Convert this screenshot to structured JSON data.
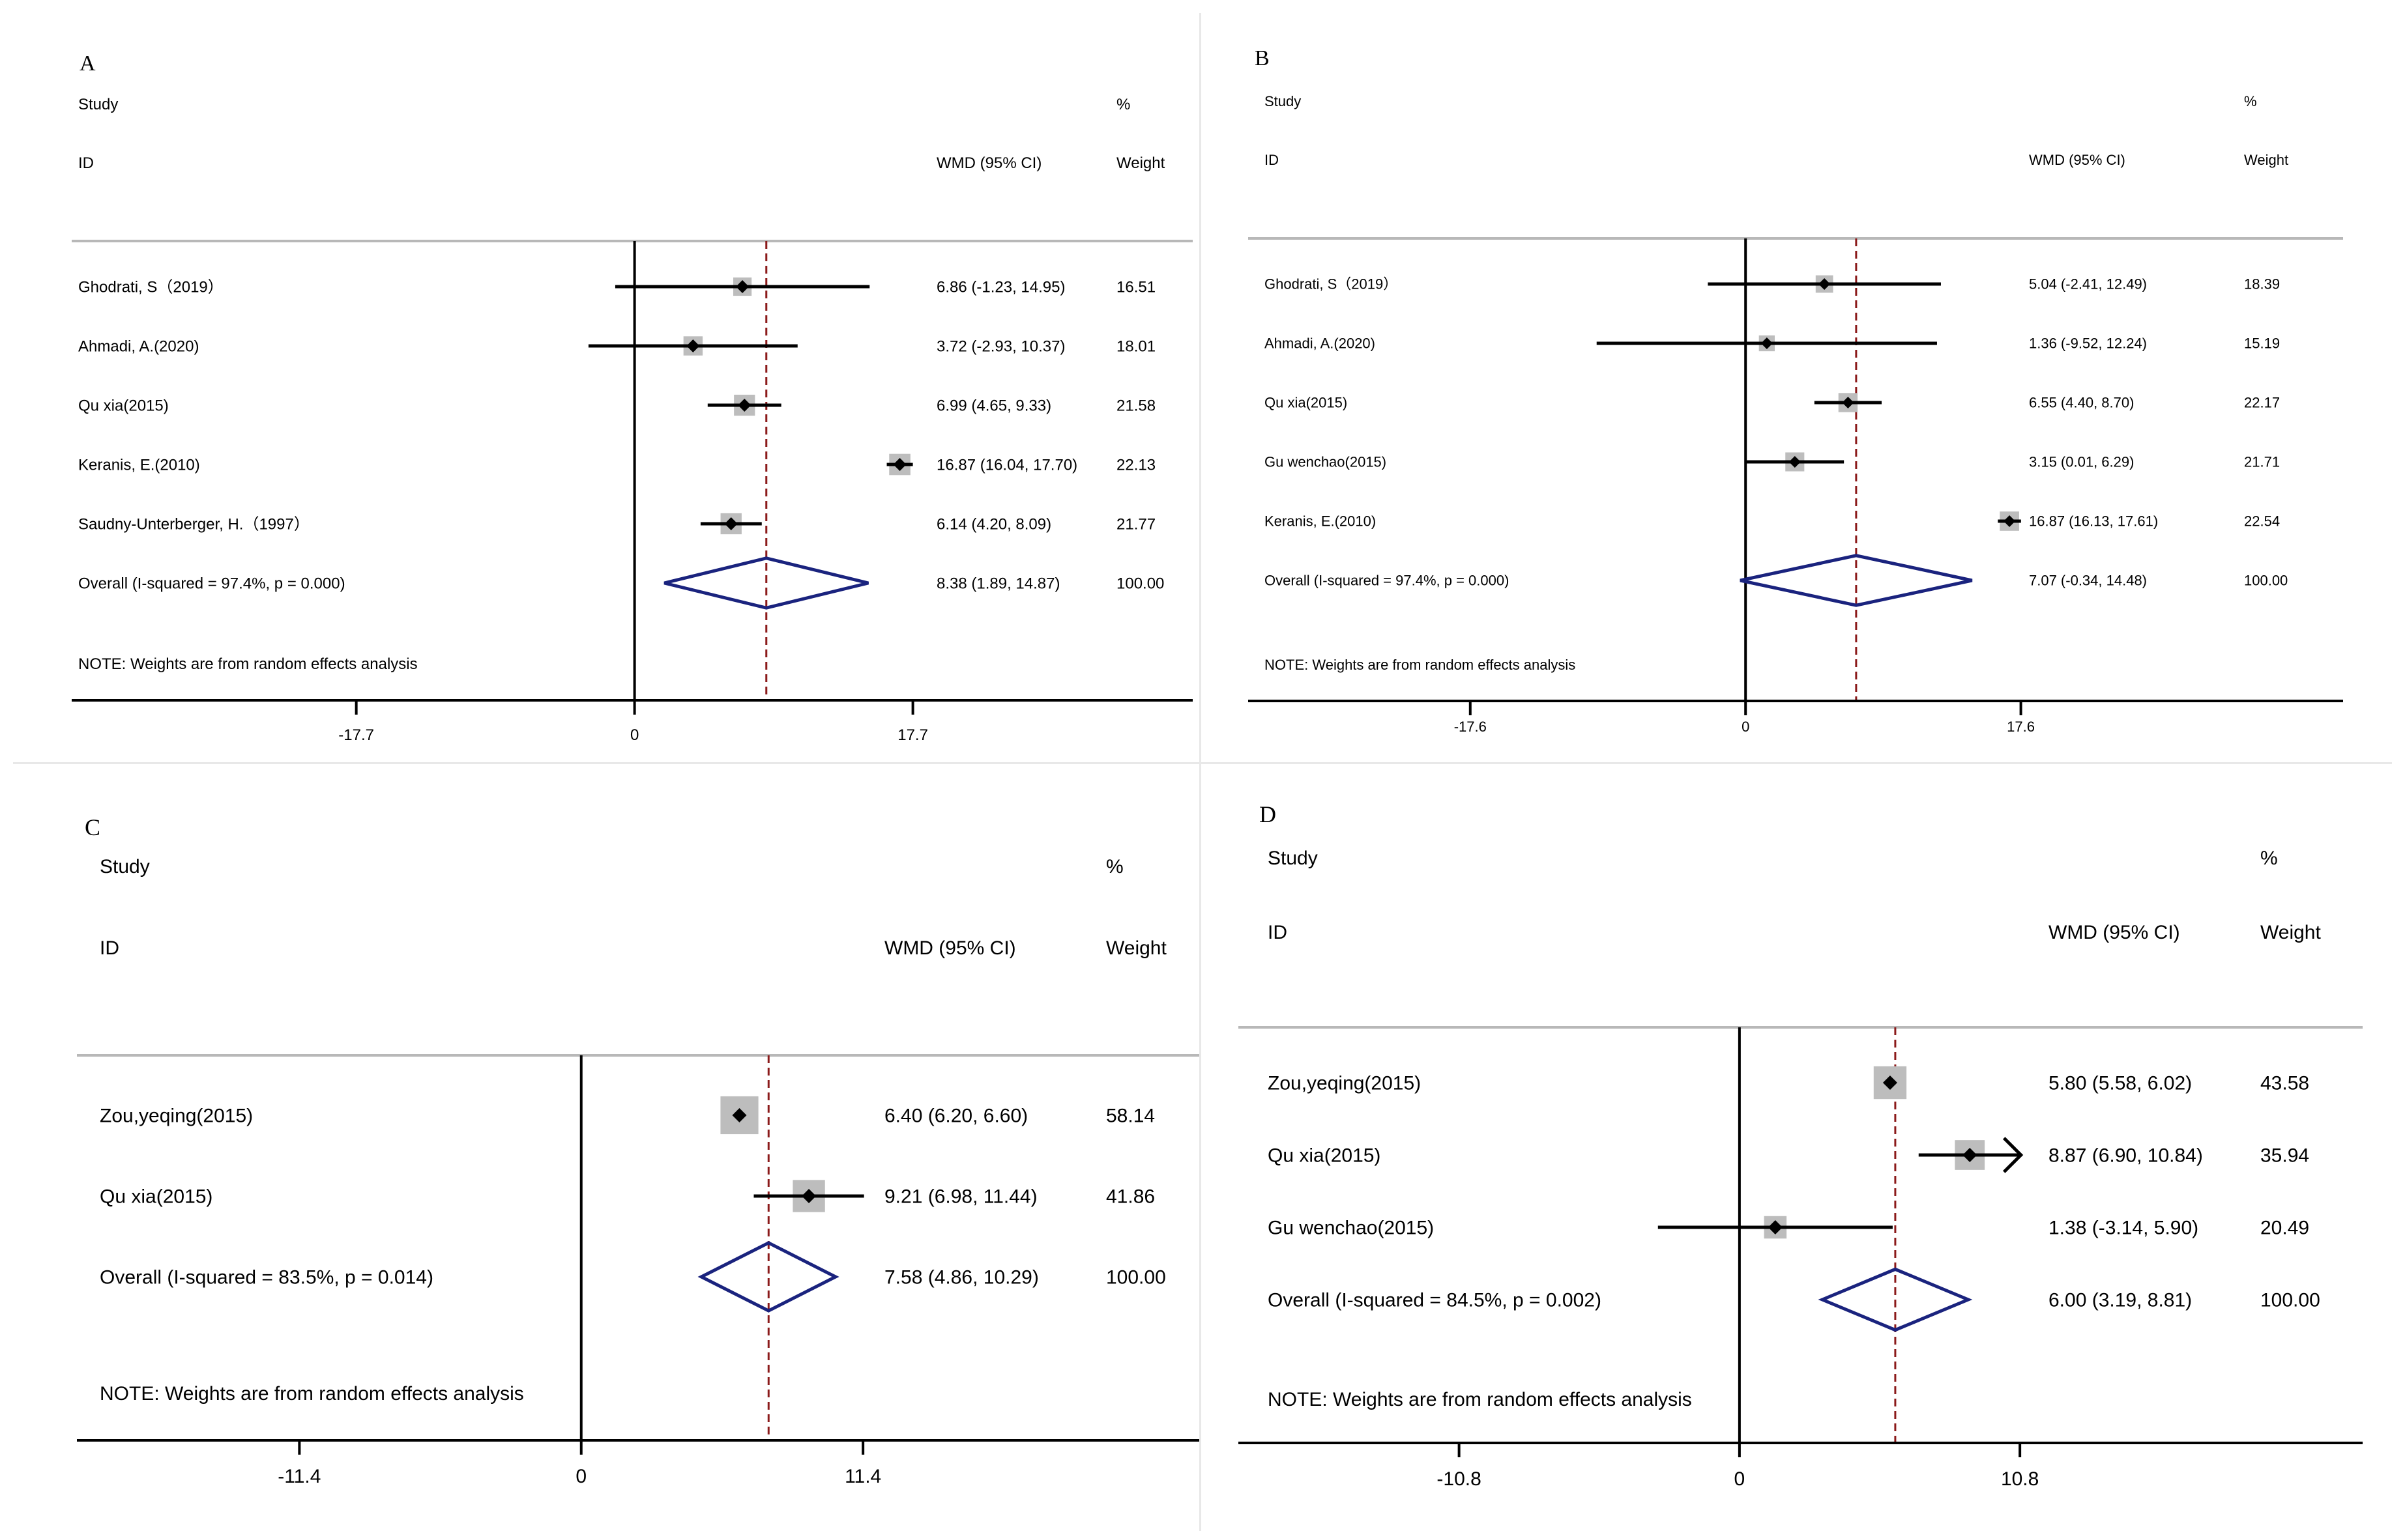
{
  "colors": {
    "line": "#000000",
    "axis": "#000000",
    "header_rule": "#b8b8b8",
    "weight_box": "#bdbdbd",
    "diamond": "#1a237e",
    "ref_line": "#8b1a1a"
  },
  "chart_data": [
    {
      "type": "forest",
      "panel_label": "A",
      "headers": {
        "study": "Study",
        "id": "ID",
        "effect": "WMD (95% CI)",
        "pct": "%",
        "weight": "Weight"
      },
      "xlim": [
        -35.8,
        35.5
      ],
      "ticks": [
        {
          "value": -17.7,
          "label": "-17.7"
        },
        {
          "value": 0,
          "label": "0"
        },
        {
          "value": 17.7,
          "label": "17.7"
        }
      ],
      "studies": [
        {
          "name": "Ghodrati, S（2019）",
          "est": 6.86,
          "lo": -1.23,
          "hi": 14.95,
          "ci_text": "6.86 (-1.23, 14.95)",
          "weight": 16.51,
          "weight_text": "16.51"
        },
        {
          "name": "Ahmadi, A.(2020)",
          "est": 3.72,
          "lo": -2.93,
          "hi": 10.37,
          "ci_text": "3.72 (-2.93, 10.37)",
          "weight": 18.01,
          "weight_text": "18.01"
        },
        {
          "name": "Qu xia(2015)",
          "est": 6.99,
          "lo": 4.65,
          "hi": 9.33,
          "ci_text": "6.99 (4.65, 9.33)",
          "weight": 21.58,
          "weight_text": "21.58"
        },
        {
          "name": "Keranis, E.(2010)",
          "est": 16.87,
          "lo": 16.04,
          "hi": 17.7,
          "ci_text": "16.87 (16.04, 17.70)",
          "weight": 22.13,
          "weight_text": "22.13"
        },
        {
          "name": "Saudny-Unterberger, H.（1997）",
          "est": 6.14,
          "lo": 4.2,
          "hi": 8.09,
          "ci_text": "6.14 (4.20, 8.09)",
          "weight": 21.77,
          "weight_text": "21.77"
        }
      ],
      "overall": {
        "label": "Overall  (I-squared = 97.4%, p = 0.000)",
        "est": 8.38,
        "lo": 1.89,
        "hi": 14.87,
        "ci_text": "8.38 (1.89, 14.87)",
        "weight_text": "100.00"
      },
      "note": "NOTE: Weights are from random effects analysis"
    },
    {
      "type": "forest",
      "panel_label": "B",
      "headers": {
        "study": "Study",
        "id": "ID",
        "effect": "WMD (95% CI)",
        "pct": "%",
        "weight": "Weight"
      },
      "xlim": [
        -31.8,
        38.2
      ],
      "ticks": [
        {
          "value": -17.6,
          "label": "-17.6"
        },
        {
          "value": 0,
          "label": "0"
        },
        {
          "value": 17.6,
          "label": "17.6"
        }
      ],
      "studies": [
        {
          "name": "Ghodrati, S（2019）",
          "est": 5.04,
          "lo": -2.41,
          "hi": 12.49,
          "ci_text": "5.04 (-2.41, 12.49)",
          "weight": 18.39,
          "weight_text": "18.39"
        },
        {
          "name": "Ahmadi, A.(2020)",
          "est": 1.36,
          "lo": -9.52,
          "hi": 12.24,
          "ci_text": "1.36 (-9.52, 12.24)",
          "weight": 15.19,
          "weight_text": "15.19"
        },
        {
          "name": "Qu xia(2015)",
          "est": 6.55,
          "lo": 4.4,
          "hi": 8.7,
          "ci_text": "6.55 (4.40, 8.70)",
          "weight": 22.17,
          "weight_text": "22.17"
        },
        {
          "name": "Gu wenchao(2015)",
          "est": 3.15,
          "lo": 0.01,
          "hi": 6.29,
          "ci_text": "3.15 (0.01, 6.29)",
          "weight": 21.71,
          "weight_text": "21.71"
        },
        {
          "name": "Keranis, E.(2010)",
          "est": 16.87,
          "lo": 16.13,
          "hi": 17.61,
          "ci_text": "16.87 (16.13, 17.61)",
          "weight": 22.54,
          "weight_text": "22.54"
        }
      ],
      "overall": {
        "label": "Overall  (I-squared = 97.4%, p = 0.000)",
        "est": 7.07,
        "lo": -0.34,
        "hi": 14.48,
        "ci_text": "7.07 (-0.34, 14.48)",
        "weight_text": "100.00"
      },
      "note": "NOTE: Weights are from random effects analysis"
    },
    {
      "type": "forest",
      "panel_label": "C",
      "headers": {
        "study": "Study",
        "id": "ID",
        "effect": "WMD (95% CI)",
        "pct": "%",
        "weight": "Weight"
      },
      "xlim": [
        -20.4,
        25.0
      ],
      "ticks": [
        {
          "value": -11.4,
          "label": "-11.4"
        },
        {
          "value": 0,
          "label": "0"
        },
        {
          "value": 11.4,
          "label": "11.4"
        }
      ],
      "studies": [
        {
          "name": "Zou,yeqing(2015)",
          "est": 6.4,
          "lo": 6.2,
          "hi": 6.6,
          "ci_text": "6.40 (6.20, 6.60)",
          "weight": 58.14,
          "weight_text": "58.14"
        },
        {
          "name": "Qu xia(2015)",
          "est": 9.21,
          "lo": 6.98,
          "hi": 11.44,
          "ci_text": "9.21 (6.98, 11.44)",
          "weight": 41.86,
          "weight_text": "41.86"
        }
      ],
      "overall": {
        "label": "Overall  (I-squared = 83.5%, p = 0.014)",
        "est": 7.58,
        "lo": 4.86,
        "hi": 10.29,
        "ci_text": "7.58 (4.86, 10.29)",
        "weight_text": "100.00"
      },
      "note": "NOTE: Weights are from random effects analysis"
    },
    {
      "type": "forest",
      "panel_label": "D",
      "headers": {
        "study": "Study",
        "id": "ID",
        "effect": "WMD (95% CI)",
        "pct": "%",
        "weight": "Weight"
      },
      "xlim": [
        -19.3,
        24.0
      ],
      "ticks": [
        {
          "value": -10.8,
          "label": "-10.8"
        },
        {
          "value": 0,
          "label": "0"
        },
        {
          "value": 10.8,
          "label": "10.8"
        }
      ],
      "studies": [
        {
          "name": "Zou,yeqing(2015)",
          "est": 5.8,
          "lo": 5.58,
          "hi": 6.02,
          "ci_text": "5.80 (5.58, 6.02)",
          "weight": 43.58,
          "weight_text": "43.58"
        },
        {
          "name": "Qu xia(2015)",
          "est": 8.87,
          "lo": 6.9,
          "hi": 10.84,
          "ci_text": "8.87 (6.90, 10.84)",
          "weight": 35.94,
          "weight_text": "35.94",
          "clipped_hi": true
        },
        {
          "name": "Gu wenchao(2015)",
          "est": 1.38,
          "lo": -3.14,
          "hi": 5.9,
          "ci_text": "1.38 (-3.14, 5.90)",
          "weight": 20.49,
          "weight_text": "20.49"
        }
      ],
      "overall": {
        "label": "Overall  (I-squared = 84.5%, p = 0.002)",
        "est": 6.0,
        "lo": 3.19,
        "hi": 8.81,
        "ci_text": "6.00 (3.19, 8.81)",
        "weight_text": "100.00"
      },
      "note": "NOTE: Weights are from random effects analysis"
    }
  ]
}
